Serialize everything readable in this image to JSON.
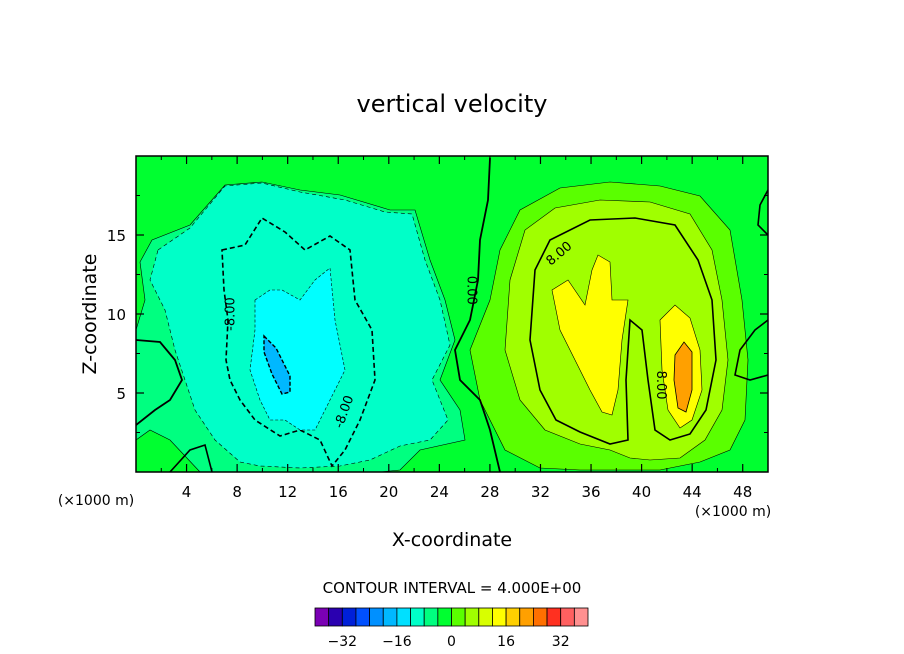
{
  "chart_data": {
    "type": "heatmap",
    "title": "vertical velocity",
    "xlabel": "X-coordinate",
    "ylabel": "Z-coordinate",
    "x_unit_label": "(×1000 m)",
    "y_unit_label": "(×1000 m)",
    "xlim": [
      0,
      50
    ],
    "ylim": [
      0,
      20
    ],
    "x_ticks": [
      4,
      8,
      12,
      16,
      20,
      24,
      28,
      32,
      36,
      40,
      44,
      48
    ],
    "y_ticks": [
      5,
      10,
      15
    ],
    "contour_labels": [
      {
        "text": "-8.00",
        "x": 7.5,
        "z": 10.0,
        "rotate": -90
      },
      {
        "text": "-8.00",
        "x": 16.5,
        "z": 3.8,
        "rotate": -70
      },
      {
        "text": "0.00",
        "x": 26.5,
        "z": 11.5,
        "rotate": 90
      },
      {
        "text": "8.00",
        "x": 33.5,
        "z": 13.8,
        "rotate": -40
      },
      {
        "text": "8.00",
        "x": 41.5,
        "z": 5.5,
        "rotate": 90
      }
    ],
    "contour_interval_label": "CONTOUR INTERVAL = 4.000E+00",
    "colorbar": {
      "levels": [
        -36,
        -32,
        -28,
        -24,
        -20,
        -16,
        -12,
        -8,
        -4,
        0,
        4,
        8,
        12,
        16,
        20,
        24,
        28,
        32,
        36
      ],
      "colors": [
        "#7a00b4",
        "#2a00b0",
        "#0020d8",
        "#0050ff",
        "#0090ff",
        "#00b8ff",
        "#00e0ff",
        "#00ffc8",
        "#00ff80",
        "#00ff30",
        "#5aff00",
        "#a0ff00",
        "#d8ff00",
        "#ffff00",
        "#ffd000",
        "#ffa000",
        "#ff7000",
        "#ff3020",
        "#ff6060",
        "#ff9090"
      ],
      "tick_labels": [
        "-32",
        "-16",
        "0",
        "16",
        "32"
      ],
      "tick_values": [
        -32,
        -16,
        0,
        16,
        32
      ]
    }
  }
}
